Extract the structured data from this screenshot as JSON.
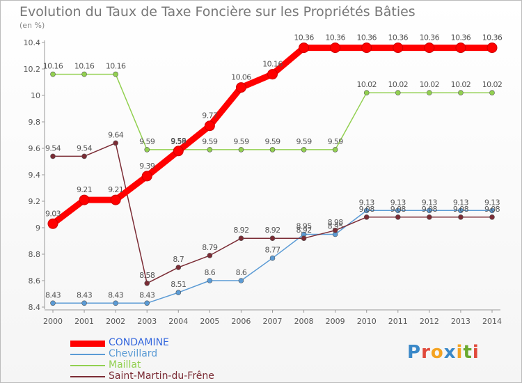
{
  "title": "Evolution du Taux de Taxe Foncière sur les Propriétés Bâties",
  "subtitle": "(en %)",
  "brand_logo": {
    "text": "Proxiti",
    "letter_colors": [
      "#3a88c8",
      "#e0493b",
      "#f4a321",
      "#3a88c8",
      "#f4a321",
      "#6aa92f",
      "#e0493b"
    ]
  },
  "chart_data": {
    "type": "line",
    "title": "Evolution du Taux de Taxe Foncière sur les Propriétés Bâties",
    "ylabel": "(en %)",
    "xlabel": "",
    "x": [
      "2000",
      "2001",
      "2002",
      "2003",
      "2004",
      "2005",
      "2006",
      "2007",
      "2008",
      "2009",
      "2010",
      "2011",
      "2012",
      "2013",
      "2014"
    ],
    "ylim": [
      8.4,
      10.4
    ],
    "yticks": [
      "8.4",
      "8.6",
      "8.8",
      "9",
      "9.2",
      "9.4",
      "9.6",
      "9.8",
      "10",
      "10.2",
      "10.4"
    ],
    "grid": false,
    "legend_position": "bottom-left",
    "series": [
      {
        "name": "CONDAMINE",
        "color": "#ff0000",
        "label_color": "#3366dd",
        "values": [
          9.03,
          9.21,
          9.21,
          9.39,
          9.58,
          9.77,
          10.06,
          10.16,
          10.36,
          10.36,
          10.36,
          10.36,
          10.36,
          10.36,
          10.36
        ],
        "labels": [
          "9.03",
          "9.21",
          "9.21",
          "9.39",
          "9.58",
          "9.77",
          "10.06",
          "10.16",
          "10.36",
          "10.36",
          "10.36",
          "10.36",
          "10.36",
          "10.36",
          "10.36"
        ]
      },
      {
        "name": "Chevillard",
        "color": "#5b9bd5",
        "label_color": "#5b9bd5",
        "values": [
          8.43,
          8.43,
          8.43,
          8.43,
          8.51,
          8.6,
          8.6,
          8.77,
          8.95,
          8.95,
          9.13,
          9.13,
          9.13,
          9.13,
          9.13
        ],
        "labels": [
          "8.43",
          "8.43",
          "8.43",
          "8.43",
          "8.51",
          "8.6",
          "8.6",
          "8.77",
          "8.95",
          "8.95",
          "9.13",
          "9.13",
          "9.13",
          "9.13",
          "9.13"
        ]
      },
      {
        "name": "Maillat",
        "color": "#92d050",
        "label_color": "#92d050",
        "values": [
          10.16,
          10.16,
          10.16,
          9.59,
          9.59,
          9.59,
          9.59,
          9.59,
          9.59,
          9.59,
          10.02,
          10.02,
          10.02,
          10.02,
          10.02
        ],
        "labels": [
          "10.16",
          "10.16",
          "10.16",
          "9.59",
          "9.59",
          "9.59",
          "9.59",
          "9.59",
          "9.59",
          "9.59",
          "10.02",
          "10.02",
          "10.02",
          "10.02",
          "10.02"
        ]
      },
      {
        "name": "Saint-Martin-du-Frêne",
        "color": "#7b2c35",
        "label_color": "#7b2c35",
        "values": [
          9.54,
          9.54,
          9.64,
          8.58,
          8.7,
          8.79,
          8.92,
          8.92,
          8.92,
          8.98,
          9.08,
          9.08,
          9.08,
          9.08,
          9.08
        ],
        "labels": [
          "9.54",
          "9.54",
          "9.64",
          "8.58",
          "8.7",
          "8.79",
          "8.92",
          "8.92",
          "8.92",
          "8.98",
          "9.08",
          "9.08",
          "9.08",
          "9.08",
          "9.08"
        ]
      }
    ]
  }
}
